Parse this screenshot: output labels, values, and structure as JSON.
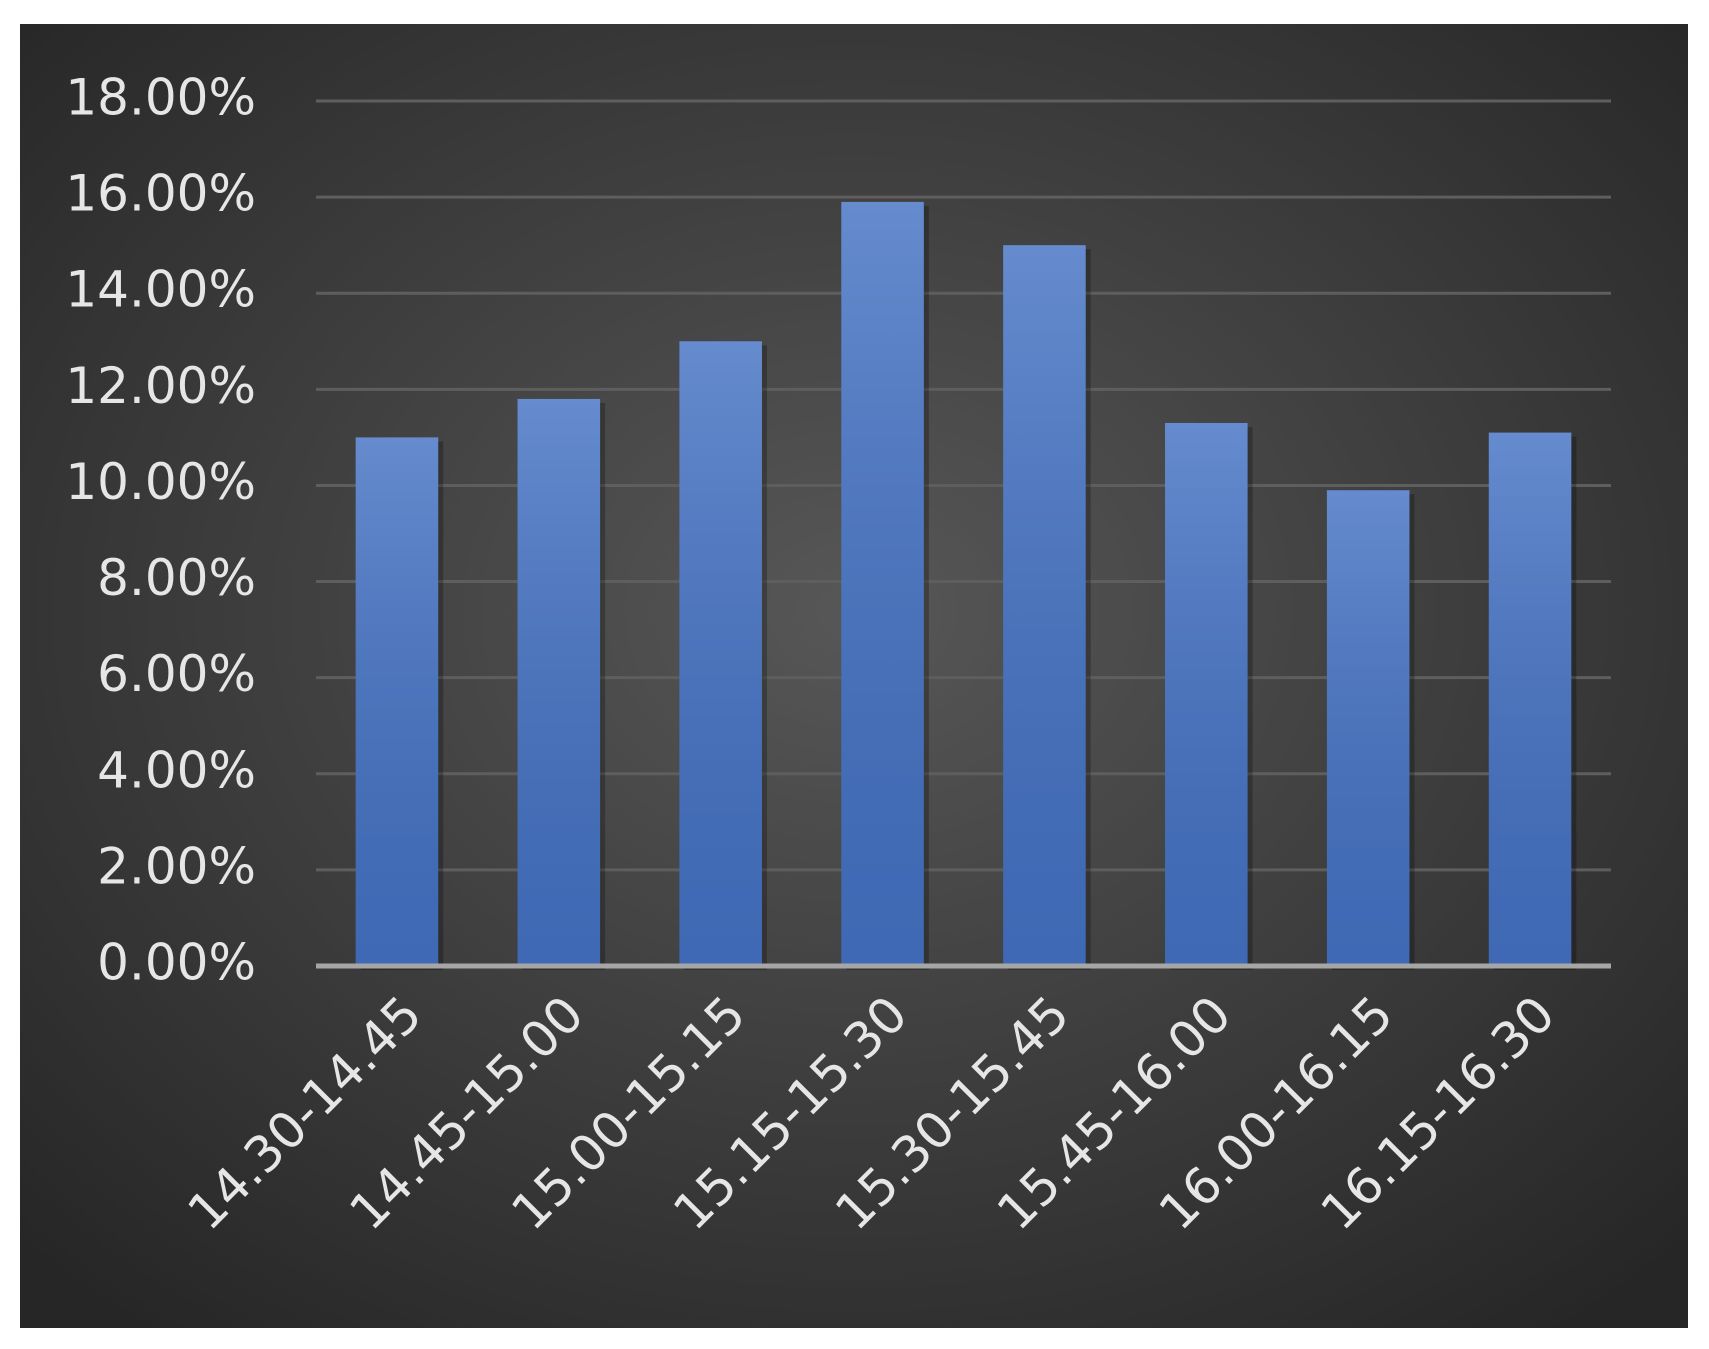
{
  "chart_data": {
    "type": "bar",
    "categories": [
      "14.30-14.45",
      "14.45-15.00",
      "15.00-15.15",
      "15.15-15.30",
      "15.30-15.45",
      "15.45-16.00",
      "16.00-16.15",
      "16.15-16.30"
    ],
    "values": [
      11.0,
      11.8,
      13.0,
      15.9,
      15.0,
      11.3,
      9.9,
      11.1
    ],
    "color": "#4472c4",
    "ylim": [
      0,
      18
    ],
    "yticks": [
      {
        "value": 0,
        "label": "0.00%"
      },
      {
        "value": 2,
        "label": "2.00%"
      },
      {
        "value": 4,
        "label": "4.00%"
      },
      {
        "value": 6,
        "label": "6.00%"
      },
      {
        "value": 8,
        "label": "8.00%"
      },
      {
        "value": 10,
        "label": "10.00%"
      },
      {
        "value": 12,
        "label": "12.00%"
      },
      {
        "value": 14,
        "label": "14.00%"
      },
      {
        "value": 16,
        "label": "16.00%"
      },
      {
        "value": 18,
        "label": "18.00%"
      }
    ],
    "grid": true
  }
}
